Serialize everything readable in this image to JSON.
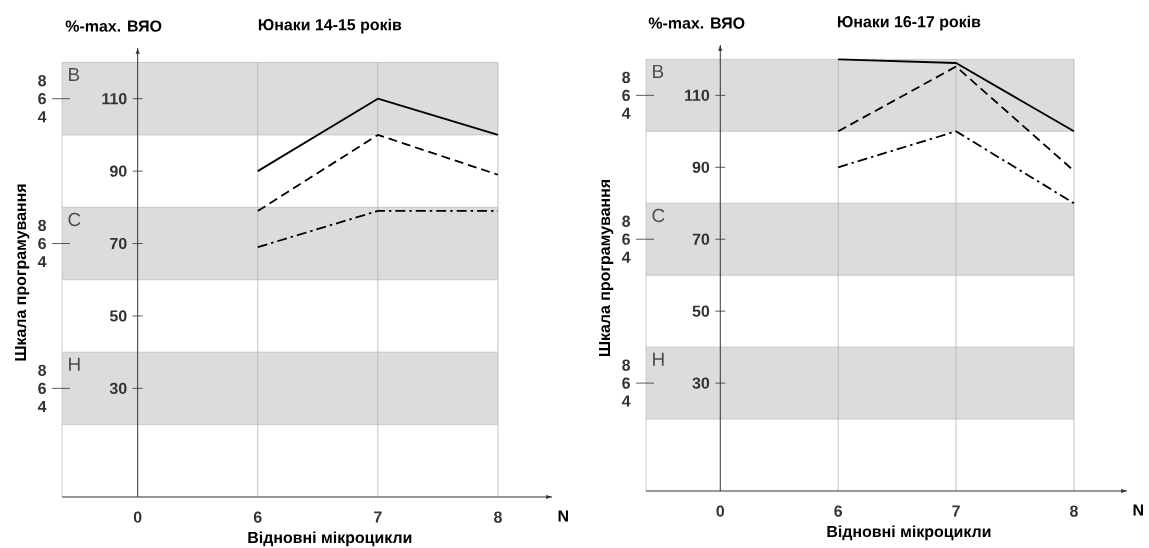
{
  "chart_data": [
    {
      "type": "line",
      "title": "Юнаки 14-15 років",
      "ylabel": "%-max. ВЯО",
      "xlabel": "Відновні мікроцикли",
      "annotations": [
        "N",
        "Шкала програмування",
        "8",
        "6",
        "4",
        "8",
        "6",
        "4",
        "8",
        "6",
        "4"
      ],
      "categories": [
        "0",
        "6",
        "7",
        "8"
      ],
      "ylim": [
        0,
        124
      ],
      "yticks": [
        30,
        50,
        70,
        90,
        110
      ],
      "bands": [
        {
          "axis": "y",
          "from": 100,
          "to": 120,
          "label": "В",
          "color": "#dcdcdc"
        },
        {
          "axis": "y",
          "from": 60,
          "to": 80,
          "label": "С",
          "color": "#dcdcdc"
        },
        {
          "axis": "y",
          "from": 20,
          "to": 40,
          "label": "Н",
          "color": "#dcdcdc"
        }
      ],
      "grid": "x",
      "series": [
        {
          "color": "#000000",
          "line_style": "solid",
          "values": [
            null,
            90,
            110,
            100
          ]
        },
        {
          "color": "#000000",
          "line_style": "dashed",
          "values": [
            null,
            79,
            100,
            89
          ]
        },
        {
          "color": "#000000",
          "line_style": "dashdot",
          "values": [
            null,
            69,
            79,
            79
          ]
        }
      ]
    },
    {
      "type": "line",
      "title": "Юнаки 16-17 років",
      "ylabel": "%-max. ВЯО",
      "xlabel": "Відновні мікроцикли",
      "annotations": [
        "N",
        "Шкала програмування",
        "8",
        "6",
        "4",
        "8",
        "6",
        "4",
        "8",
        "6",
        "4"
      ],
      "categories": [
        "0",
        "6",
        "7",
        "8"
      ],
      "ylim": [
        0,
        124
      ],
      "yticks": [
        30,
        50,
        70,
        90,
        110
      ],
      "bands": [
        {
          "axis": "y",
          "from": 100,
          "to": 120,
          "label": "В",
          "color": "#dcdcdc"
        },
        {
          "axis": "y",
          "from": 60,
          "to": 80,
          "label": "С",
          "color": "#dcdcdc"
        },
        {
          "axis": "y",
          "from": 20,
          "to": 40,
          "label": "Н",
          "color": "#dcdcdc"
        }
      ],
      "grid": "x",
      "series": [
        {
          "color": "#000000",
          "line_style": "solid",
          "values": [
            null,
            120,
            119,
            100
          ]
        },
        {
          "color": "#000000",
          "line_style": "dashed",
          "values": [
            null,
            100,
            118,
            89
          ]
        },
        {
          "color": "#000000",
          "line_style": "dashdot",
          "values": [
            null,
            90,
            100,
            80
          ]
        }
      ]
    }
  ]
}
